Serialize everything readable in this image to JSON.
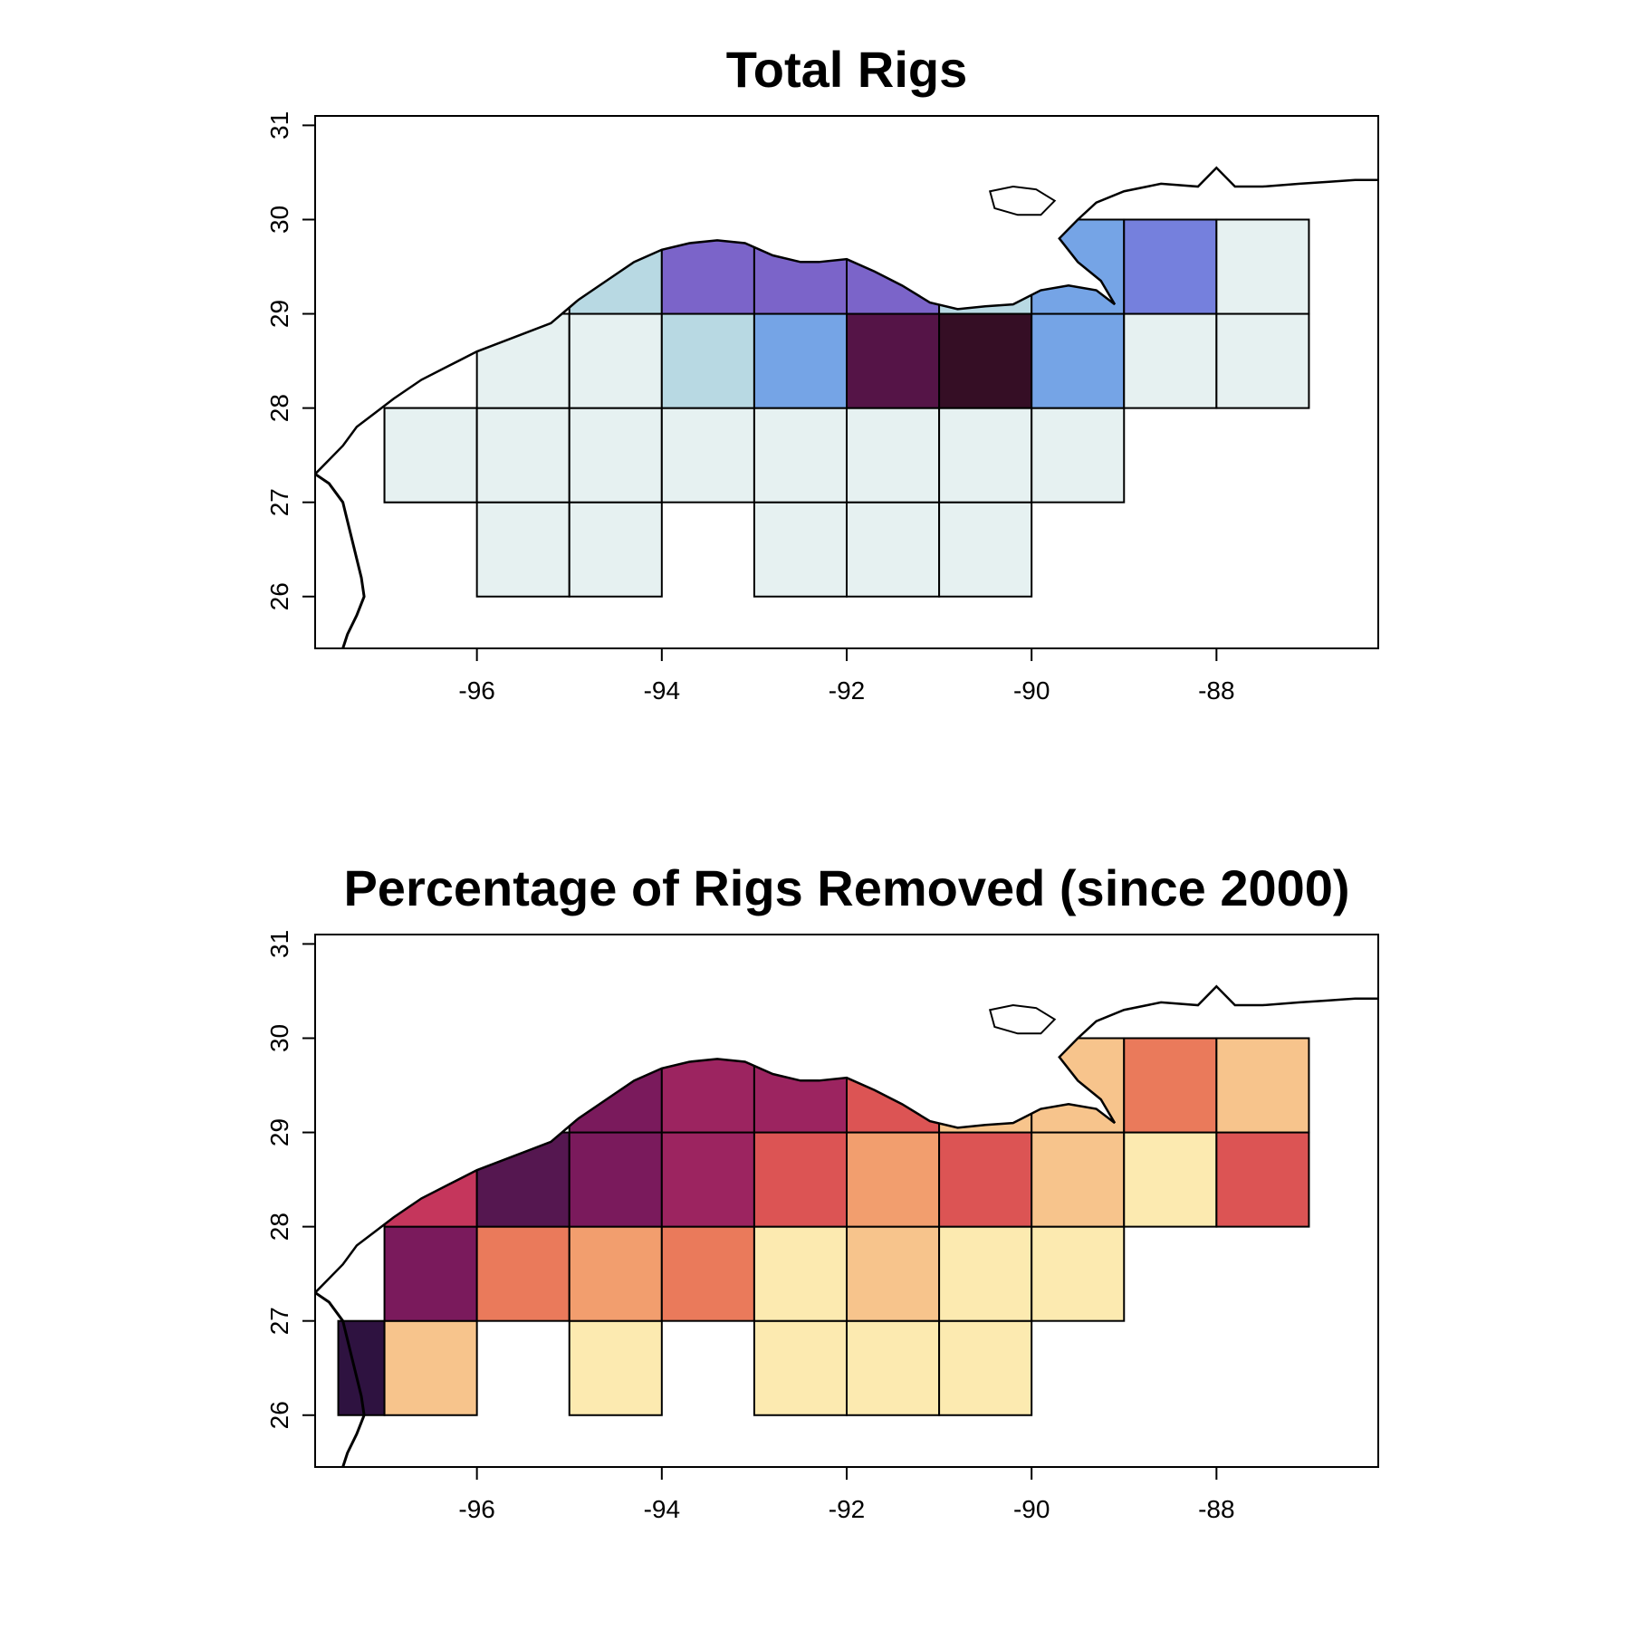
{
  "panels": [
    {
      "id": "total",
      "title": "Total Rigs",
      "xlim": [
        -97.75,
        -86.25
      ],
      "ylim": [
        25.45,
        31.1
      ],
      "xticks": [
        -96,
        -94,
        -92,
        -90,
        -88
      ],
      "yticks": [
        26,
        27,
        28,
        29,
        30,
        31
      ],
      "cells": [
        {
          "lon": -97,
          "lat": 27,
          "fill": "#E6F1F1"
        },
        {
          "lon": -96,
          "lat": 26,
          "fill": "#E6F1F1"
        },
        {
          "lon": -95,
          "lat": 26,
          "fill": "#E6F1F1"
        },
        {
          "lon": -93,
          "lat": 26,
          "fill": "#E6F1F1"
        },
        {
          "lon": -92,
          "lat": 26,
          "fill": "#E6F1F1"
        },
        {
          "lon": -91,
          "lat": 26,
          "fill": "#E6F1F1"
        },
        {
          "lon": -97,
          "lat": 27,
          "fill": "#E6F1F1"
        },
        {
          "lon": -96,
          "lat": 27,
          "fill": "#E6F1F1"
        },
        {
          "lon": -95,
          "lat": 27,
          "fill": "#E6F1F1"
        },
        {
          "lon": -94,
          "lat": 27,
          "fill": "#E6F1F1"
        },
        {
          "lon": -93,
          "lat": 27,
          "fill": "#E6F1F1"
        },
        {
          "lon": -92,
          "lat": 27,
          "fill": "#E6F1F1"
        },
        {
          "lon": -91,
          "lat": 27,
          "fill": "#E6F1F1"
        },
        {
          "lon": -90,
          "lat": 27,
          "fill": "#E6F1F1"
        },
        {
          "lon": -96,
          "lat": 28,
          "fill": "#E6F1F1"
        },
        {
          "lon": -95,
          "lat": 28,
          "fill": "#E6F1F1"
        },
        {
          "lon": -94,
          "lat": 28,
          "fill": "#B8D9E3"
        },
        {
          "lon": -93,
          "lat": 28,
          "fill": "#75A4E6"
        },
        {
          "lon": -92,
          "lat": 28,
          "fill": "#551447"
        },
        {
          "lon": -91,
          "lat": 28,
          "fill": "#350E25"
        },
        {
          "lon": -90,
          "lat": 28,
          "fill": "#75A4E6"
        },
        {
          "lon": -89,
          "lat": 28,
          "fill": "#E6F1F1"
        },
        {
          "lon": -88,
          "lat": 28,
          "fill": "#E6F1F1"
        },
        {
          "lon": -95,
          "lat": 29,
          "fill": "#B8D9E3"
        },
        {
          "lon": -94,
          "lat": 29,
          "fill": "#7B64C9"
        },
        {
          "lon": -93,
          "lat": 29,
          "fill": "#7B64C9"
        },
        {
          "lon": -92,
          "lat": 29,
          "fill": "#7B64C9"
        },
        {
          "lon": -91,
          "lat": 29,
          "fill": "#B8D9E3"
        },
        {
          "lon": -90,
          "lat": 29,
          "fill": "#75A4E6"
        },
        {
          "lon": -89,
          "lat": 29,
          "fill": "#7580DD"
        },
        {
          "lon": -88,
          "lat": 29,
          "fill": "#E6F1F1"
        }
      ]
    },
    {
      "id": "removed",
      "title": "Percentage of Rigs Removed (since 2000)",
      "xlim": [
        -97.75,
        -86.25
      ],
      "ylim": [
        25.45,
        31.1
      ],
      "xticks": [
        -96,
        -94,
        -92,
        -90,
        -88
      ],
      "yticks": [
        26,
        27,
        28,
        29,
        30,
        31
      ],
      "cells": [
        {
          "lon": -97.5,
          "lat": 26,
          "fill": "#2E1240"
        },
        {
          "lon": -97,
          "lat": 26,
          "fill": "#F7C48C"
        },
        {
          "lon": -95,
          "lat": 26,
          "fill": "#FCEAB0"
        },
        {
          "lon": -93,
          "lat": 26,
          "fill": "#FCEAB0"
        },
        {
          "lon": -92,
          "lat": 26,
          "fill": "#FCEAB0"
        },
        {
          "lon": -91,
          "lat": 26,
          "fill": "#FCEAB0"
        },
        {
          "lon": -97,
          "lat": 27,
          "fill": "#7A1A5C"
        },
        {
          "lon": -96,
          "lat": 27,
          "fill": "#EA7A5B"
        },
        {
          "lon": -95,
          "lat": 27,
          "fill": "#F29E6E"
        },
        {
          "lon": -94,
          "lat": 27,
          "fill": "#EA7A5B"
        },
        {
          "lon": -93,
          "lat": 27,
          "fill": "#FCEAB0"
        },
        {
          "lon": -92,
          "lat": 27,
          "fill": "#F7C48C"
        },
        {
          "lon": -91,
          "lat": 27,
          "fill": "#FCEAB0"
        },
        {
          "lon": -90,
          "lat": 27,
          "fill": "#FCEAB0"
        },
        {
          "lon": -97,
          "lat": 28,
          "fill": "#C5365C"
        },
        {
          "lon": -96,
          "lat": 28,
          "fill": "#551750"
        },
        {
          "lon": -95,
          "lat": 28,
          "fill": "#7A1A5C"
        },
        {
          "lon": -94,
          "lat": 28,
          "fill": "#9C2460"
        },
        {
          "lon": -93,
          "lat": 28,
          "fill": "#DC5454"
        },
        {
          "lon": -92,
          "lat": 28,
          "fill": "#F29E6E"
        },
        {
          "lon": -91,
          "lat": 28,
          "fill": "#DC5454"
        },
        {
          "lon": -90,
          "lat": 28,
          "fill": "#F7C48C"
        },
        {
          "lon": -89,
          "lat": 28,
          "fill": "#FCEAB0"
        },
        {
          "lon": -88,
          "lat": 28,
          "fill": "#DC5454"
        },
        {
          "lon": -95,
          "lat": 29,
          "fill": "#7A1A5C"
        },
        {
          "lon": -94,
          "lat": 29,
          "fill": "#9C2460"
        },
        {
          "lon": -93,
          "lat": 29,
          "fill": "#9C2460"
        },
        {
          "lon": -92,
          "lat": 29,
          "fill": "#DC5454"
        },
        {
          "lon": -91,
          "lat": 29,
          "fill": "#F7C48C"
        },
        {
          "lon": -90,
          "lat": 29,
          "fill": "#F7C48C"
        },
        {
          "lon": -89,
          "lat": 29,
          "fill": "#EA7A5B"
        },
        {
          "lon": -88,
          "lat": 29,
          "fill": "#F7C48C"
        }
      ]
    }
  ]
}
